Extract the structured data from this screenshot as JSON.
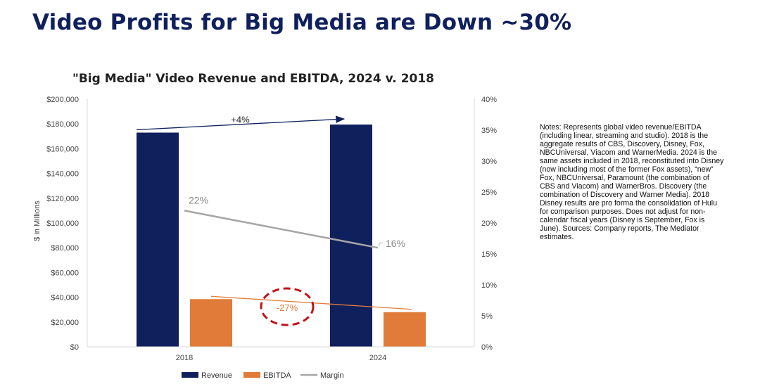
{
  "slide_title": "Video Profits for Big Media are Down ~30%",
  "notes": "Notes: Represents global video revenue/EBITDA (including linear, streaming and studio). 2018 is the aggregate results of CBS, Discovery, Disney, Fox, NBCUniversal, Viacom and WarnerMedia. 2024 is the same assets included in 2018, reconstituted into Disney (now including most of the former Fox assets), “new” Fox, NBCUniversal, Paramount (the combination of CBS and Viacom) and WarnerBros. Discovery (the combination of Discovery and Warner Media). 2018 Disney results are pro forma the consolidation of Hulu for comparison purposes. Does not adjust for non-calendar fiscal years (Disney is September, Fox is June). Sources: Company reports, The Mediator estimates.",
  "colors": {
    "title": "#10205c",
    "revenue": "#10205c",
    "ebitda": "#e07b39",
    "margin": "#a6a6a6",
    "circle": "#c0141c"
  },
  "chart_data": {
    "type": "bar",
    "title": "\"Big Media\" Video Revenue and EBITDA, 2024 v. 2018",
    "categories": [
      "2018",
      "2024"
    ],
    "series": [
      {
        "name": "Revenue",
        "values": [
          173000,
          179500
        ]
      },
      {
        "name": "EBITDA",
        "values": [
          38500,
          28000
        ]
      }
    ],
    "margin_series": {
      "name": "Margin",
      "values": [
        22,
        16
      ],
      "labels": [
        "22%",
        "16%"
      ]
    },
    "ylabel": "$ in Millions",
    "ylim": [
      0,
      200000
    ],
    "y_ticks": [
      "$0",
      "$20,000",
      "$40,000",
      "$60,000",
      "$80,000",
      "$100,000",
      "$120,000",
      "$140,000",
      "$160,000",
      "$180,000",
      "$200,000"
    ],
    "y2lim": [
      0,
      40
    ],
    "y2_ticks": [
      "0%",
      "5%",
      "10%",
      "15%",
      "20%",
      "25%",
      "30%",
      "35%",
      "40%"
    ],
    "annotations": {
      "revenue_change": "+4%",
      "ebitda_change": "-27%"
    },
    "legend": [
      "Revenue",
      "EBITDA",
      "Margin"
    ],
    "legend_position": "bottom"
  }
}
